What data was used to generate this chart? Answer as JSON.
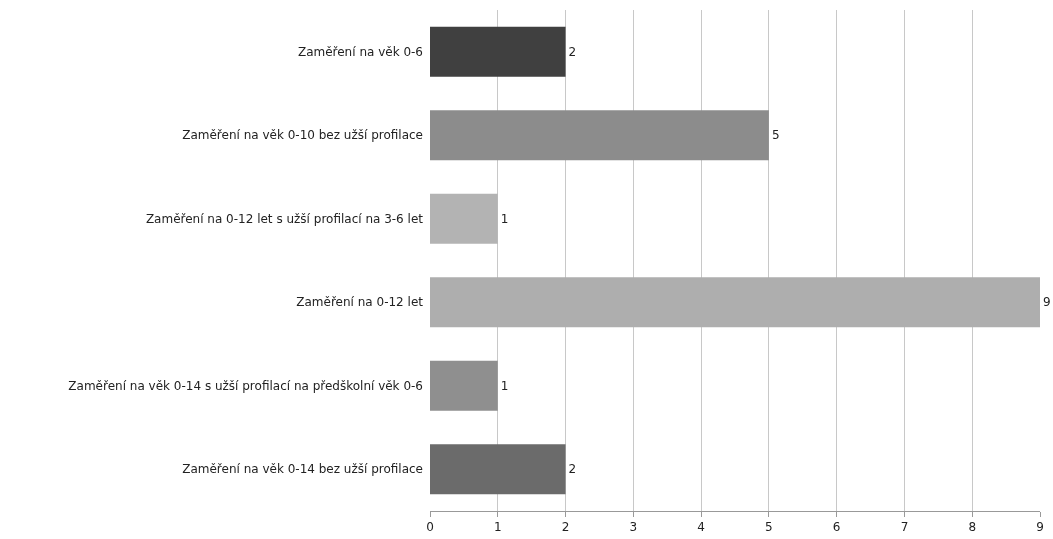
{
  "chart_data": {
    "type": "bar",
    "orientation": "horizontal",
    "categories": [
      "Zaměření na věk 0-6",
      "Zaměření na věk 0-10 bez užší profilace",
      "Zaměření na 0-12 let s užší profilací na 3-6 let",
      "Zaměření na 0-12 let",
      "Zaměření na věk 0-14 s užší profilací na předškolní věk 0-6",
      "Zaměření na věk 0-14 bez užší profilace"
    ],
    "values": [
      2,
      5,
      1,
      9,
      1,
      2
    ],
    "colors": [
      "#404040",
      "#8c8c8c",
      "#b3b3b3",
      "#aeaeae",
      "#8f8f8f",
      "#6b6b6b"
    ],
    "xlim": [
      0,
      9
    ],
    "xticks": [
      0,
      1,
      2,
      3,
      4,
      5,
      6,
      7,
      8,
      9
    ],
    "grid": "x",
    "data_labels": true
  }
}
